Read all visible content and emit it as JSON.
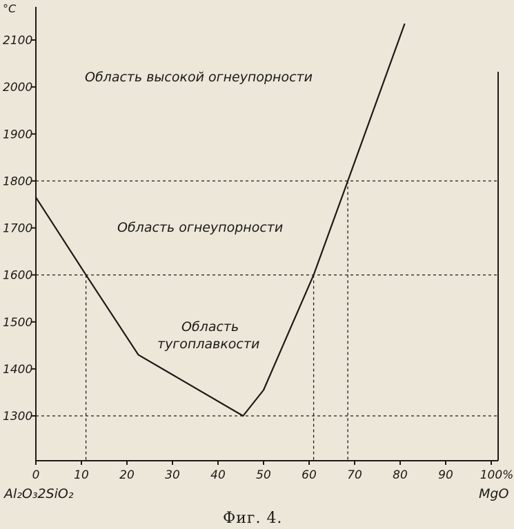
{
  "chart_data": {
    "type": "line",
    "unit_label": "°C",
    "x_unit_suffix": "%",
    "xlim": [
      0,
      100
    ],
    "ylim": [
      1200,
      2170
    ],
    "x_ticks": [
      0,
      10,
      20,
      30,
      40,
      50,
      60,
      70,
      80,
      90,
      100
    ],
    "x_tick_labels": [
      "0",
      "10",
      "20",
      "30",
      "40",
      "50",
      "60",
      "70",
      "80",
      "90",
      "100"
    ],
    "y_ticks": [
      1300,
      1400,
      1500,
      1600,
      1700,
      1800,
      1900,
      2000,
      2100
    ],
    "y_tick_labels": [
      "1300",
      "1400",
      "1500",
      "1600",
      "1700",
      "1800",
      "1900",
      "2000",
      "2100"
    ],
    "left_label": "Al₂O₃2SiO₂",
    "right_label": "MgO",
    "series": [
      {
        "x": [
          0,
          11,
          22.5,
          45.5,
          50,
          61,
          68.5,
          81
        ],
        "y": [
          1765,
          1600,
          1430,
          1300,
          1355,
          1600,
          1800,
          2135
        ]
      }
    ],
    "reference_lines": {
      "y": [
        1300,
        1600,
        1800
      ],
      "x": [
        11,
        61,
        68.5
      ]
    },
    "annotations": {
      "high_refractoriness": "Область высокой огнеупорности",
      "refractoriness": "Область огнеупорности",
      "fusibility_line1": "Область",
      "fusibility_line2": "тугоплавкости"
    },
    "caption": "Фиг. 4."
  }
}
